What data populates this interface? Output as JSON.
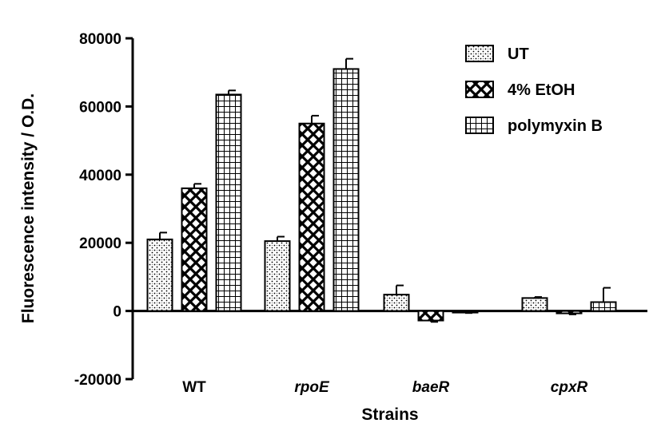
{
  "chart_data": {
    "type": "bar",
    "title": "",
    "xlabel": "Strains",
    "ylabel": "Fluorescence intensity / O.D.",
    "categories": [
      "WT",
      "rpoE",
      "baeR",
      "cpxR"
    ],
    "category_italic": [
      false,
      true,
      true,
      true
    ],
    "ylim": [
      -20000,
      80000
    ],
    "yticks": [
      -20000,
      0,
      20000,
      40000,
      60000,
      80000
    ],
    "ytick_labels": [
      "-20000",
      "0",
      "20000",
      "40000",
      "60000",
      "80000"
    ],
    "grid": false,
    "legend_position": "top-right",
    "series": [
      {
        "name": "UT",
        "pattern": "dots",
        "values": [
          21000,
          20500,
          4800,
          3800
        ],
        "errors": [
          2000,
          1300,
          2700,
          300
        ]
      },
      {
        "name": "4% EtOH",
        "pattern": "crosshatch",
        "values": [
          36000,
          55000,
          -2800,
          -700
        ],
        "errors": [
          1300,
          2300,
          400,
          300
        ]
      },
      {
        "name": "polymyxin B",
        "pattern": "grid",
        "values": [
          63500,
          71000,
          -400,
          2600
        ],
        "errors": [
          1200,
          3000,
          200,
          4200
        ]
      }
    ]
  }
}
